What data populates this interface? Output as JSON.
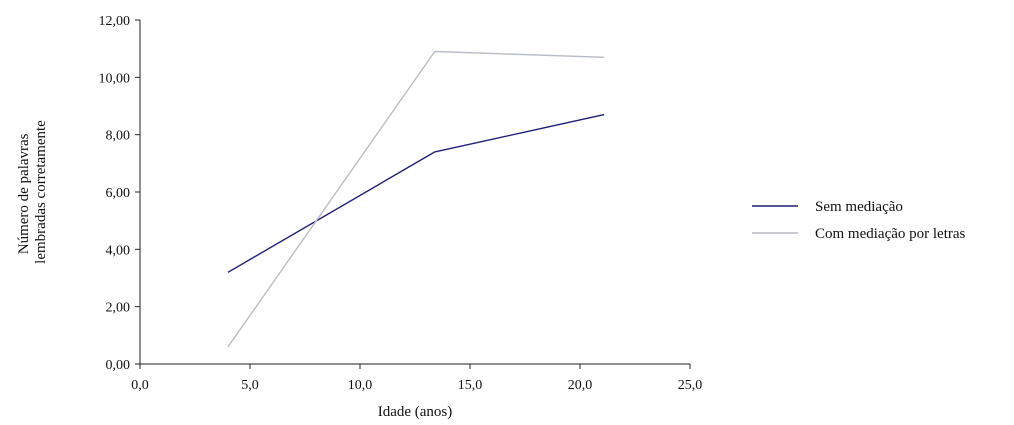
{
  "chart_data": {
    "type": "line",
    "title": "",
    "xlabel": "Idade (anos)",
    "ylabel_lines": [
      "Número de palavras",
      "lembradas corretamente"
    ],
    "xlim": [
      0,
      25
    ],
    "ylim": [
      0,
      12
    ],
    "x_ticks": [
      {
        "value": 0,
        "label": "0,0"
      },
      {
        "value": 5,
        "label": "5,0"
      },
      {
        "value": 10,
        "label": "10,0"
      },
      {
        "value": 15,
        "label": "15,0"
      },
      {
        "value": 20,
        "label": "20,0"
      },
      {
        "value": 25,
        "label": "25,0"
      }
    ],
    "y_ticks": [
      {
        "value": 0,
        "label": "0,00"
      },
      {
        "value": 2,
        "label": "2,00"
      },
      {
        "value": 4,
        "label": "4,00"
      },
      {
        "value": 6,
        "label": "6,00"
      },
      {
        "value": 8,
        "label": "8,00"
      },
      {
        "value": 10,
        "label": "10,00"
      },
      {
        "value": 12,
        "label": "12,00"
      }
    ],
    "grid": false,
    "legend_position": "right",
    "series": [
      {
        "name": "Sem mediação",
        "color": "#1f1f7a",
        "x": [
          4.0,
          13.4,
          21.1
        ],
        "y": [
          3.2,
          7.4,
          8.7
        ]
      },
      {
        "name": "Com mediação por letras",
        "color": "#b8bcc4",
        "x": [
          4.0,
          13.4,
          21.1
        ],
        "y": [
          0.6,
          10.9,
          10.7
        ]
      }
    ]
  }
}
